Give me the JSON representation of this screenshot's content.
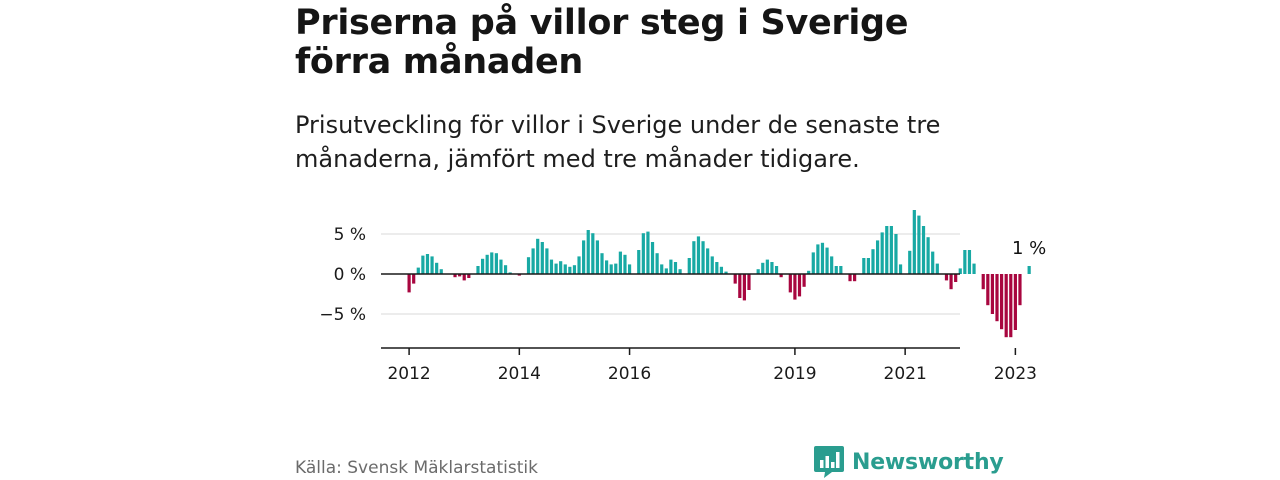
{
  "title": "Priserna på villor steg i Sverige förra månaden",
  "subtitle": "Prisutveckling för villor i Sverige under de senaste tre månaderna, jämfört med tre månader tidigare.",
  "source": "Källa: Svensk Mäklarstatistik",
  "brand": "Newsworthy",
  "colors": {
    "positive": "#18a9a4",
    "negative": "#a8063f",
    "axis": "#1a1a1a",
    "grid": "#d9d9d9",
    "brand": "#2a9d8f"
  },
  "chart_data": {
    "type": "bar",
    "title": "Priserna på villor steg i Sverige förra månaden",
    "subtitle": "Prisutveckling för villor i Sverige under de senaste tre månaderna, jämfört med tre månader tidigare.",
    "xlabel": "",
    "ylabel": "",
    "unit": "%",
    "ylim": [
      -9,
      8.5
    ],
    "grid": true,
    "yticks": [
      5,
      0,
      -5
    ],
    "ytick_labels": [
      "5 %",
      "0 %",
      "−5 %"
    ],
    "xticks": [
      "2012",
      "2014",
      "2016",
      "2019",
      "2021",
      "2023"
    ],
    "start": "2012-01",
    "annotation": "1 %",
    "values": [
      -2.3,
      -1.2,
      0.8,
      2.3,
      2.5,
      2.2,
      1.4,
      0.6,
      0,
      0,
      -0.4,
      -0.3,
      -0.8,
      -0.5,
      0,
      1.0,
      1.9,
      2.4,
      2.7,
      2.6,
      1.8,
      1.1,
      0.2,
      0,
      -0.2,
      0,
      2.1,
      3.2,
      4.4,
      4.0,
      3.2,
      1.8,
      1.3,
      1.6,
      1.2,
      0.9,
      1.1,
      2.2,
      4.2,
      5.5,
      5.1,
      4.2,
      2.6,
      1.7,
      1.2,
      1.3,
      2.8,
      2.4,
      1.2,
      0,
      3.0,
      5.1,
      5.3,
      4.0,
      2.6,
      1.2,
      0.7,
      1.8,
      1.5,
      0.6,
      0,
      2.0,
      4.1,
      4.7,
      4.1,
      3.2,
      2.2,
      1.5,
      0.9,
      0.3,
      0,
      -1.2,
      -3.0,
      -3.3,
      -2.0,
      0,
      0.6,
      1.4,
      1.8,
      1.5,
      1.0,
      -0.4,
      0,
      -2.3,
      -3.2,
      -2.8,
      -1.6,
      0.4,
      2.7,
      3.7,
      3.9,
      3.3,
      2.2,
      1.0,
      1.0,
      0,
      -0.9,
      -0.9,
      0,
      2.0,
      2.0,
      3.1,
      4.2,
      5.2,
      6.0,
      6.0,
      5.0,
      1.2,
      0,
      2.9,
      8.0,
      7.3,
      6.0,
      4.6,
      2.8,
      1.3,
      0,
      -0.8,
      -1.9,
      -1.0,
      0.7,
      3.0,
      3.0,
      1.3,
      0,
      -1.9,
      -3.9,
      -5.0,
      -5.9,
      -6.9,
      -7.9,
      -7.9,
      -7.0,
      -3.9,
      0,
      1.0
    ]
  }
}
